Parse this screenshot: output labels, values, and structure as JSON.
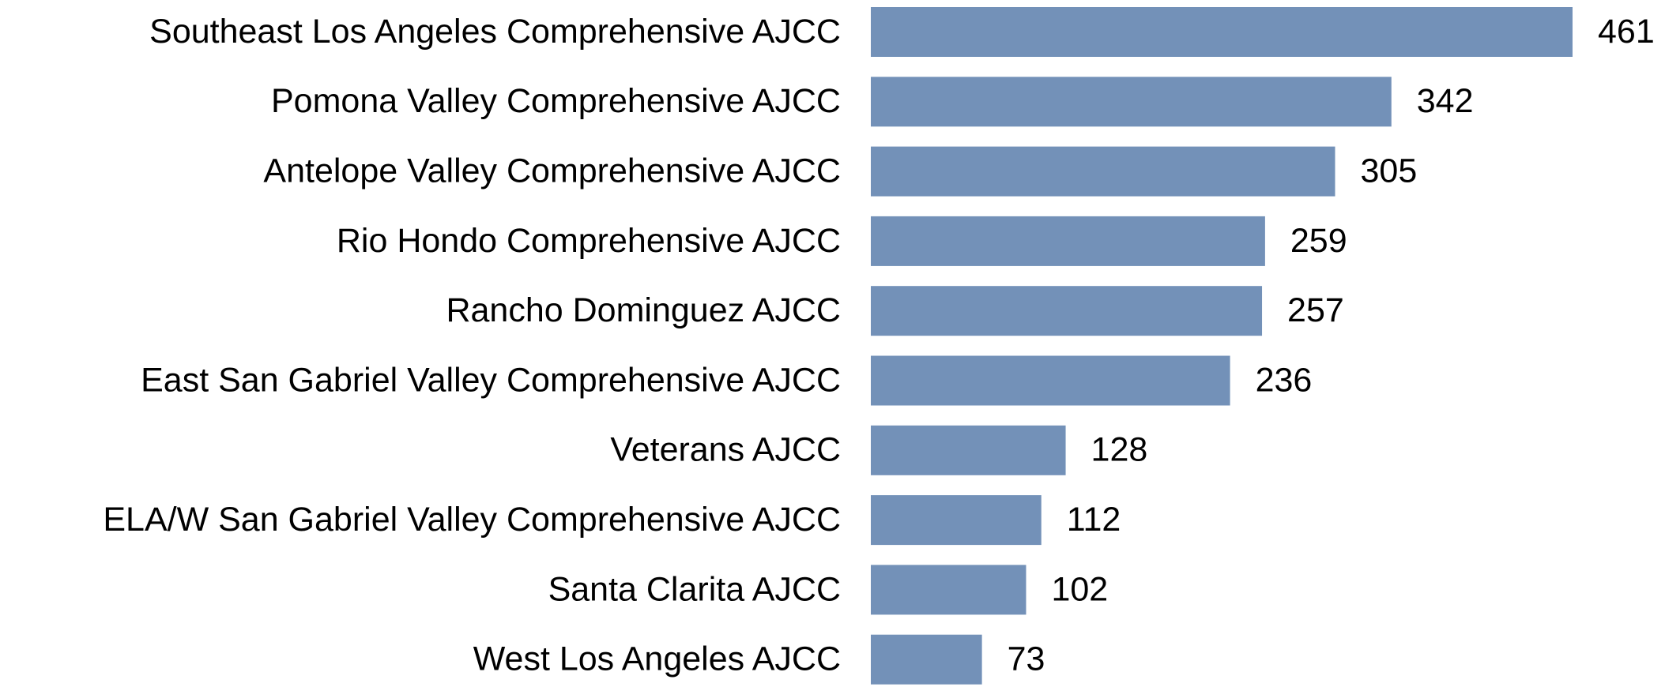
{
  "chart_data": {
    "type": "bar",
    "orientation": "horizontal",
    "categories": [
      "Southeast Los Angeles Comprehensive AJCC",
      "Pomona Valley Comprehensive AJCC",
      "Antelope Valley Comprehensive AJCC",
      "Rio Hondo Comprehensive AJCC",
      "Rancho Dominguez AJCC",
      "East San Gabriel Valley Comprehensive AJCC",
      "Veterans AJCC",
      "ELA/W San Gabriel Valley Comprehensive AJCC",
      "Santa Clarita AJCC",
      "West Los Angeles AJCC"
    ],
    "values": [
      461,
      342,
      305,
      259,
      257,
      236,
      128,
      112,
      102,
      73
    ],
    "color": "#7391b8"
  }
}
